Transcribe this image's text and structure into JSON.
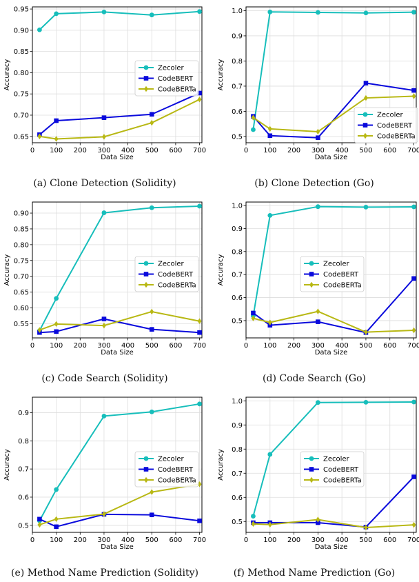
{
  "chart_data": [
    {
      "type": "line",
      "caption": "(a) Clone Detection (Solidity)",
      "xlabel": "Data Size",
      "ylabel": "Accuracy",
      "x": [
        30,
        100,
        300,
        500,
        700
      ],
      "xlim": [
        0,
        710
      ],
      "xticks": [
        0,
        100,
        200,
        300,
        400,
        500,
        600,
        700
      ],
      "ylim": [
        0.635,
        0.955
      ],
      "yticks": [
        0.65,
        0.7,
        0.75,
        0.8,
        0.85,
        0.9,
        0.95
      ],
      "ytick_labels": [
        "0.65",
        "0.70",
        "0.75",
        "0.80",
        "0.85",
        "0.90",
        "0.95"
      ],
      "grid": true,
      "legend": "center-right",
      "series": [
        {
          "name": "Zecoler",
          "values": [
            0.901,
            0.939,
            0.943,
            0.936,
            0.944
          ]
        },
        {
          "name": "CodeBERT",
          "values": [
            0.654,
            0.687,
            0.694,
            0.702,
            0.752
          ]
        },
        {
          "name": "CodeBERTa",
          "values": [
            0.65,
            0.644,
            0.649,
            0.682,
            0.737
          ]
        }
      ]
    },
    {
      "type": "line",
      "caption": "(b) Clone Detection (Go)",
      "xlabel": "Data Size",
      "ylabel": "Accuracy",
      "x": [
        30,
        100,
        300,
        500,
        700
      ],
      "xlim": [
        0,
        710
      ],
      "xticks": [
        0,
        100,
        200,
        300,
        400,
        500,
        600,
        700
      ],
      "ylim": [
        0.475,
        1.015
      ],
      "yticks": [
        0.5,
        0.6,
        0.7,
        0.8,
        0.9,
        1.0
      ],
      "ytick_labels": [
        "0.5",
        "0.6",
        "0.7",
        "0.8",
        "0.9",
        "1.0"
      ],
      "grid": true,
      "legend": "bottom-right",
      "series": [
        {
          "name": "Zecoler",
          "values": [
            0.527,
            0.995,
            0.993,
            0.991,
            0.994
          ]
        },
        {
          "name": "CodeBERT",
          "values": [
            0.58,
            0.503,
            0.495,
            0.712,
            0.683
          ]
        },
        {
          "name": "CodeBERTa",
          "values": [
            0.575,
            0.53,
            0.519,
            0.653,
            0.66
          ]
        }
      ]
    },
    {
      "type": "line",
      "caption": "(c) Code Search (Solidity)",
      "xlabel": "Data Size",
      "ylabel": "Accuracy",
      "x": [
        30,
        100,
        300,
        500,
        700
      ],
      "xlim": [
        0,
        710
      ],
      "xticks": [
        0,
        100,
        200,
        300,
        400,
        500,
        600,
        700
      ],
      "ylim": [
        0.505,
        0.935
      ],
      "yticks": [
        0.55,
        0.6,
        0.65,
        0.7,
        0.75,
        0.8,
        0.85,
        0.9
      ],
      "ytick_labels": [
        "0.55",
        "0.60",
        "0.65",
        "0.70",
        "0.75",
        "0.80",
        "0.85",
        "0.90"
      ],
      "grid": true,
      "legend": "center-right",
      "series": [
        {
          "name": "Zecoler",
          "values": [
            0.528,
            0.63,
            0.901,
            0.917,
            0.922
          ]
        },
        {
          "name": "CodeBERT",
          "values": [
            0.522,
            0.525,
            0.565,
            0.532,
            0.522
          ]
        },
        {
          "name": "CodeBERTa",
          "values": [
            0.53,
            0.549,
            0.544,
            0.588,
            0.558
          ]
        }
      ]
    },
    {
      "type": "line",
      "caption": "(d) Code Search (Go)",
      "xlabel": "Data Size",
      "ylabel": "Accuracy",
      "x": [
        30,
        100,
        300,
        500,
        700
      ],
      "xlim": [
        0,
        710
      ],
      "xticks": [
        0,
        100,
        200,
        300,
        400,
        500,
        600,
        700
      ],
      "ylim": [
        0.425,
        1.015
      ],
      "yticks": [
        0.5,
        0.6,
        0.7,
        0.8,
        0.9,
        1.0
      ],
      "ytick_labels": [
        "0.5",
        "0.6",
        "0.7",
        "0.8",
        "0.9",
        "1.0"
      ],
      "grid": true,
      "legend": "center",
      "series": [
        {
          "name": "Zecoler",
          "values": [
            0.52,
            0.957,
            0.995,
            0.993,
            0.994
          ]
        },
        {
          "name": "CodeBERT",
          "values": [
            0.533,
            0.48,
            0.495,
            0.448,
            0.683
          ]
        },
        {
          "name": "CodeBERTa",
          "values": [
            0.51,
            0.492,
            0.54,
            0.45,
            0.458
          ]
        }
      ]
    },
    {
      "type": "line",
      "caption": "(e) Method Name Prediction (Solidity)",
      "xlabel": "Data Size",
      "ylabel": "Accuracy",
      "x": [
        30,
        100,
        300,
        500,
        700
      ],
      "xlim": [
        0,
        710
      ],
      "xticks": [
        0,
        100,
        200,
        300,
        400,
        500,
        600,
        700
      ],
      "ylim": [
        0.475,
        0.955
      ],
      "yticks": [
        0.5,
        0.6,
        0.7,
        0.8,
        0.9
      ],
      "ytick_labels": [
        "0.5",
        "0.6",
        "0.7",
        "0.8",
        "0.9"
      ],
      "grid": true,
      "legend": "center-right",
      "series": [
        {
          "name": "Zecoler",
          "values": [
            0.516,
            0.627,
            0.888,
            0.903,
            0.931
          ]
        },
        {
          "name": "CodeBERT",
          "values": [
            0.522,
            0.495,
            0.539,
            0.537,
            0.516
          ]
        },
        {
          "name": "CodeBERTa",
          "values": [
            0.502,
            0.522,
            0.54,
            0.618,
            0.646
          ]
        }
      ]
    },
    {
      "type": "line",
      "caption": "(f) Method Name Prediction (Go)",
      "xlabel": "Data Size",
      "ylabel": "Accuracy",
      "x": [
        30,
        100,
        300,
        500,
        700
      ],
      "xlim": [
        0,
        710
      ],
      "xticks": [
        0,
        100,
        200,
        300,
        400,
        500,
        600,
        700
      ],
      "ylim": [
        0.455,
        1.015
      ],
      "yticks": [
        0.5,
        0.6,
        0.7,
        0.8,
        0.9,
        1.0
      ],
      "ytick_labels": [
        "0.5",
        "0.6",
        "0.7",
        "0.8",
        "0.9",
        "1.0"
      ],
      "grid": true,
      "legend": "center",
      "series": [
        {
          "name": "Zecoler",
          "values": [
            0.522,
            0.778,
            0.993,
            0.994,
            0.995
          ]
        },
        {
          "name": "CodeBERT",
          "values": [
            0.495,
            0.495,
            0.495,
            0.477,
            0.685
          ]
        },
        {
          "name": "CodeBERTa",
          "values": [
            0.49,
            0.487,
            0.508,
            0.475,
            0.486
          ]
        }
      ]
    }
  ],
  "style": {
    "colors": {
      "Zecoler": "#17BEBB",
      "CodeBERT": "#0A0ADC",
      "CodeBERTa": "#B8B814"
    },
    "markers": {
      "Zecoler": "circle",
      "CodeBERT": "square",
      "CodeBERTa": "diamond"
    }
  }
}
